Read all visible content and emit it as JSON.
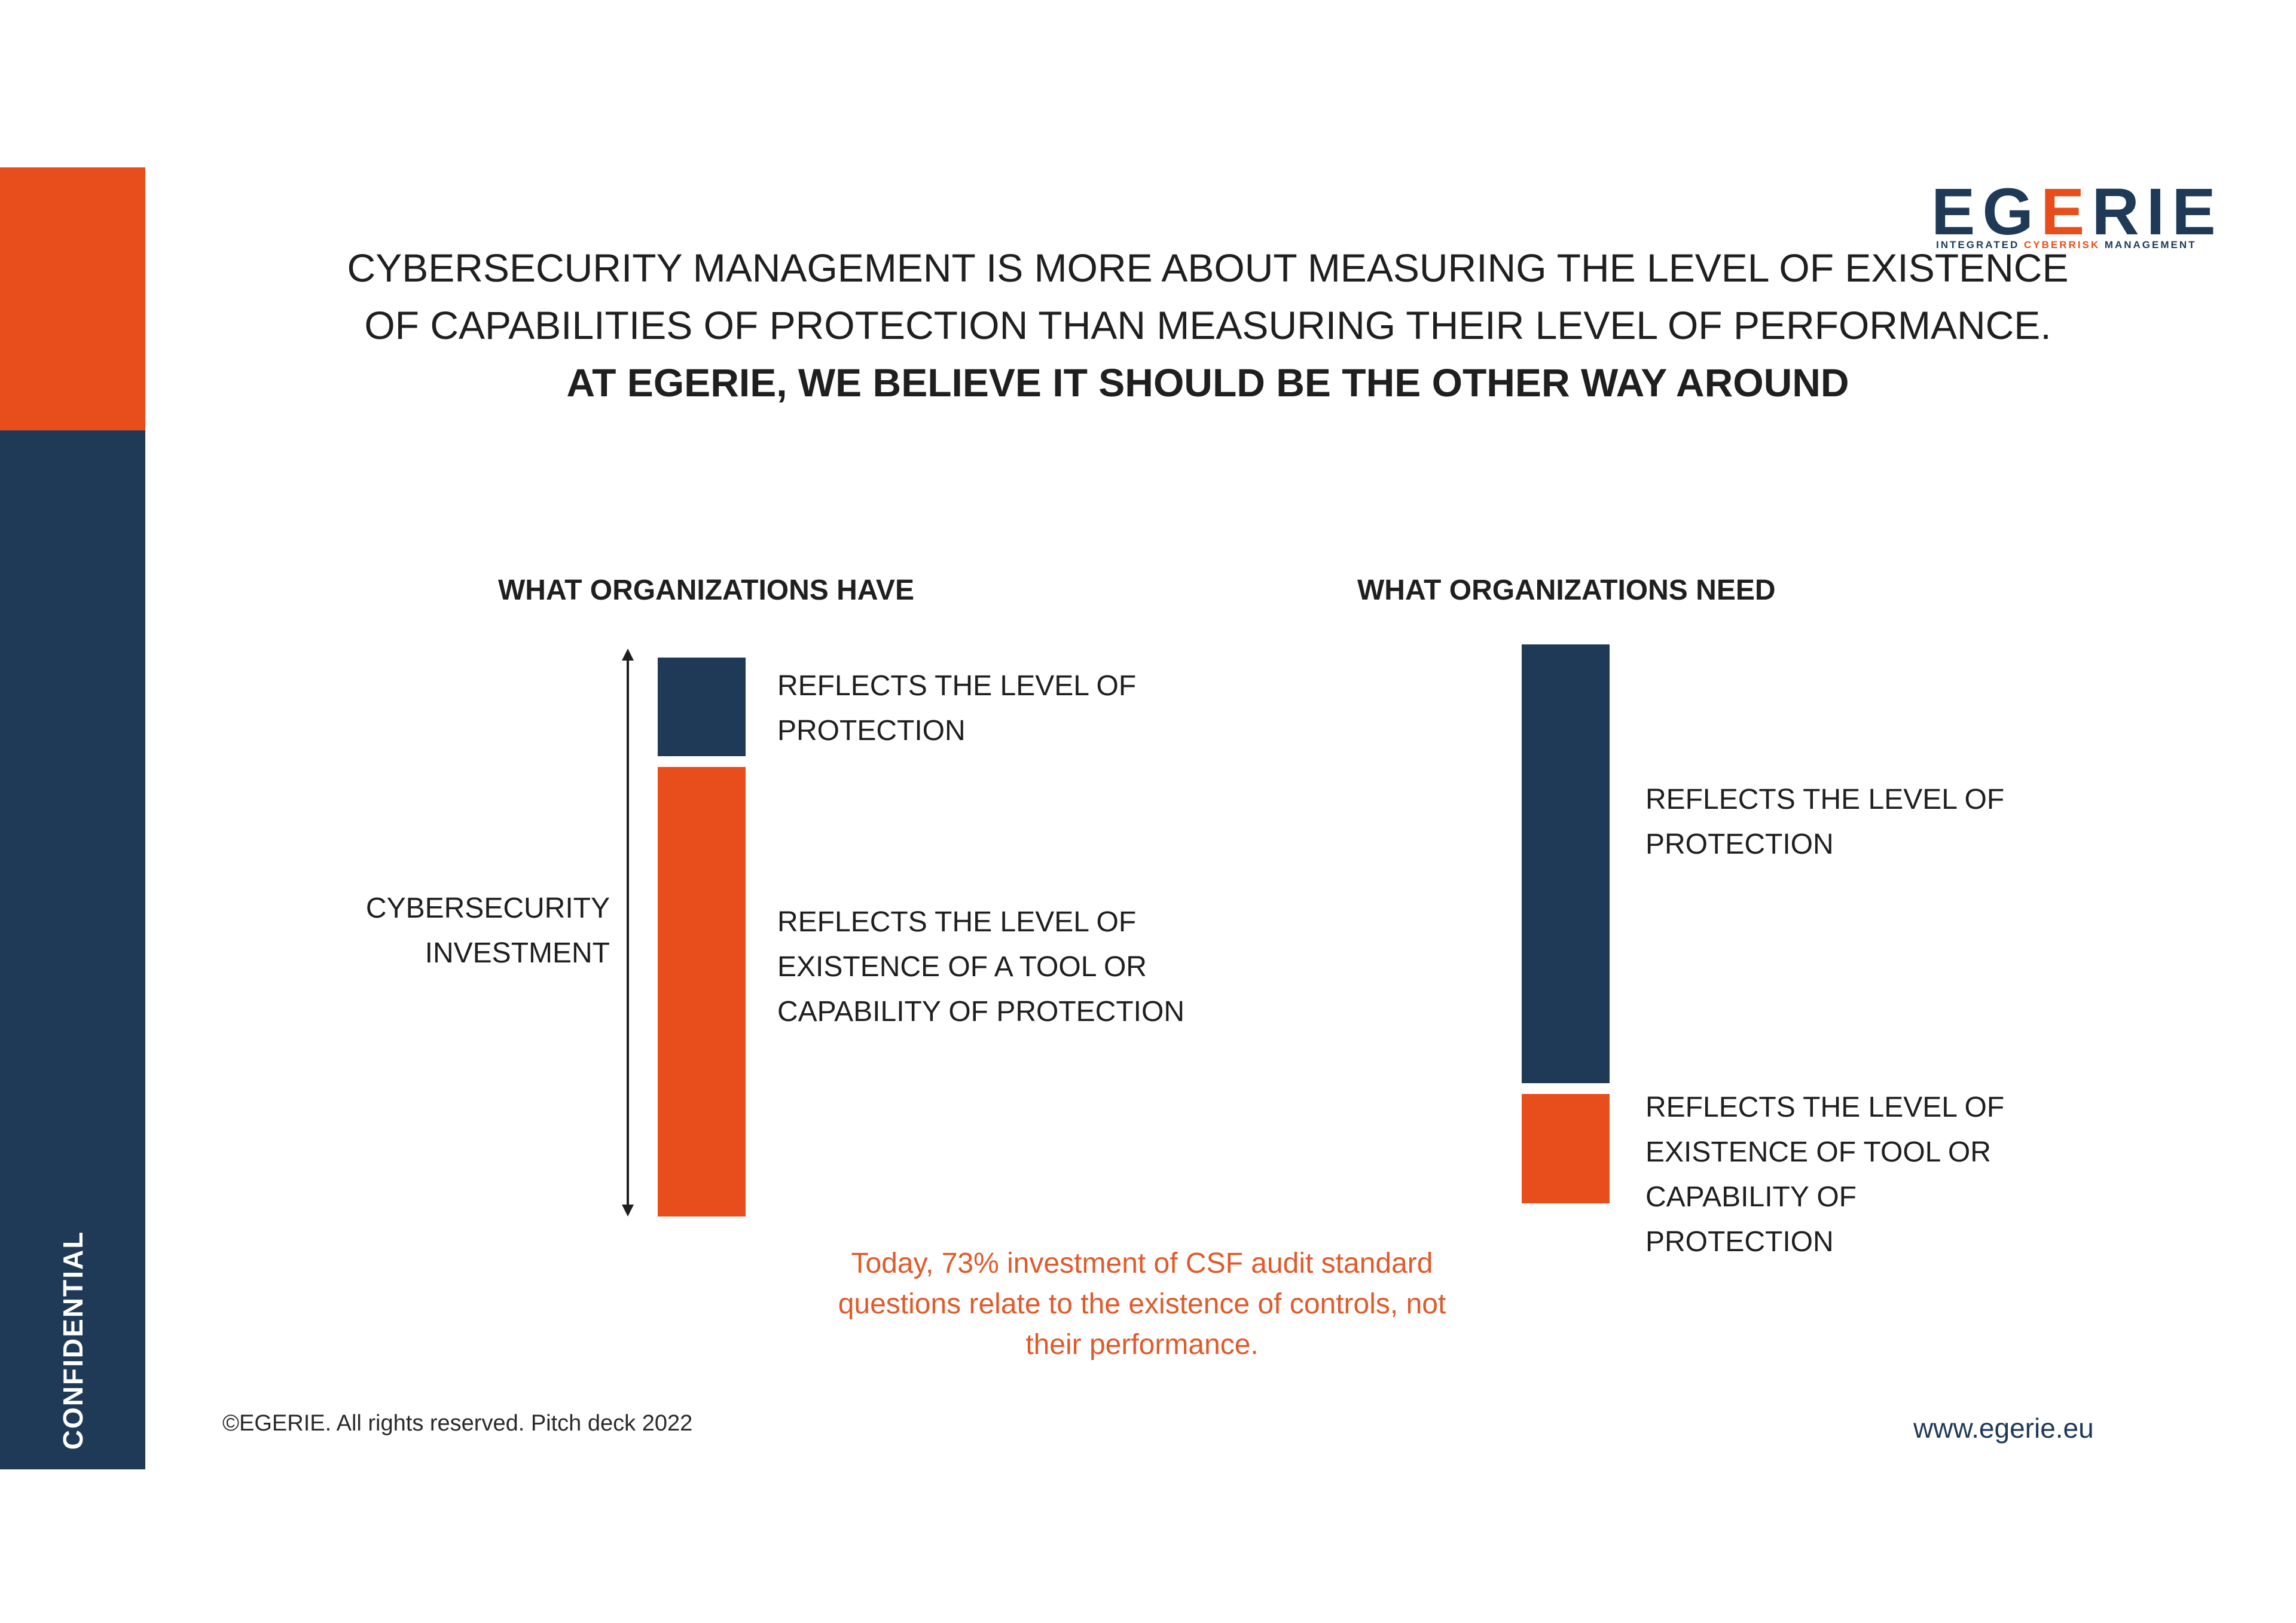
{
  "sidebar": {
    "label": "CONFIDENTIAL",
    "accent_color": "#e84e1b",
    "base_color": "#1f3a57"
  },
  "logo": {
    "word_part1": "EG",
    "word_highlight": "E",
    "word_part2": "RIE",
    "tag_part1": "INTEGRATED ",
    "tag_highlight": "CYBERRISK",
    "tag_part2": " MANAGEMENT"
  },
  "headline": {
    "regular": "CYBERSECURITY MANAGEMENT IS MORE ABOUT MEASURING THE LEVEL OF EXISTENCE OF CAPABILITIES OF PROTECTION THAN MEASURING THEIR LEVEL OF PERFORMANCE.",
    "bold": "AT EGERIE, WE BELIEVE IT SHOULD BE THE OTHER WAY AROUND"
  },
  "left_panel": {
    "title": "WHAT ORGANIZATIONS HAVE",
    "axis_label": "CYBERSECURITY INVESTMENT",
    "protection_label": "REFLECTS THE LEVEL OF PROTECTION",
    "existence_label": "REFLECTS THE LEVEL OF EXISTENCE OF A TOOL OR CAPABILITY OF PROTECTION",
    "protection_share": 0.18,
    "existence_share": 0.82
  },
  "right_panel": {
    "title": "WHAT ORGANIZATIONS NEED",
    "protection_label": "REFLECTS THE LEVEL OF PROTECTION",
    "existence_label": "REFLECTS THE LEVEL OF EXISTENCE OF TOOL OR CAPABILITY OF PROTECTION",
    "protection_share": 0.8,
    "existence_share": 0.2
  },
  "stat_note": "Today, 73% investment of CSF audit standard questions relate to the existence of controls, not their performance.",
  "footer": {
    "copyright": "©EGERIE. All rights reserved. Pitch deck 2022",
    "website": "www.egerie.eu"
  }
}
